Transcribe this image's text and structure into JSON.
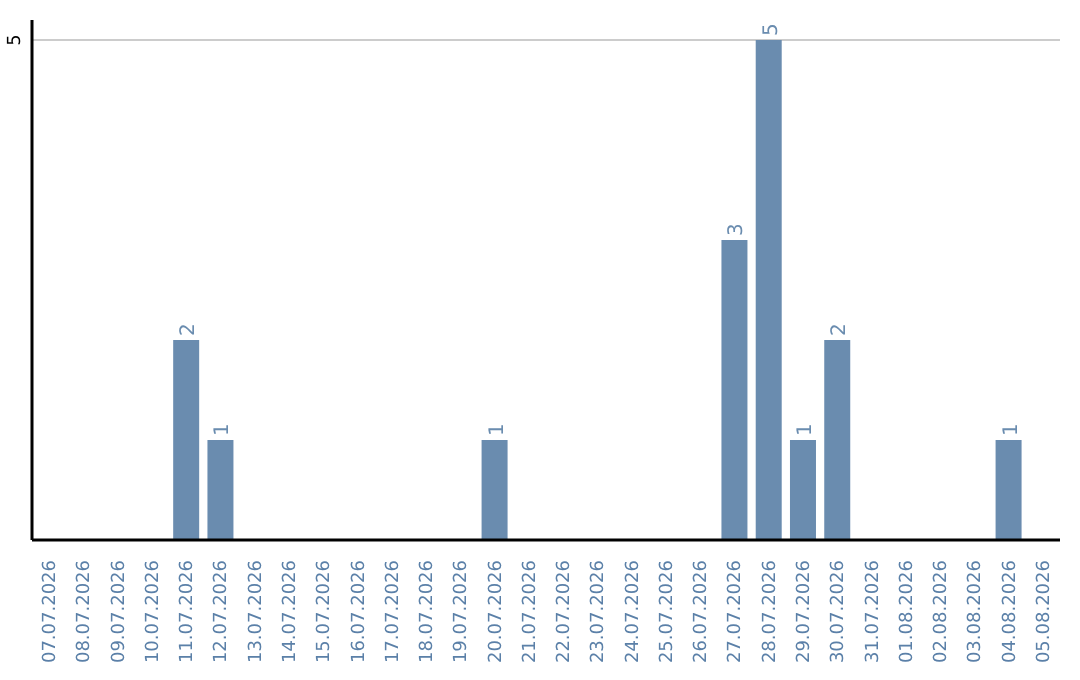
{
  "chart_data": {
    "type": "bar",
    "categories": [
      "07.07.2026",
      "08.07.2026",
      "09.07.2026",
      "10.07.2026",
      "11.07.2026",
      "12.07.2026",
      "13.07.2026",
      "14.07.2026",
      "15.07.2026",
      "16.07.2026",
      "17.07.2026",
      "18.07.2026",
      "19.07.2026",
      "20.07.2026",
      "21.07.2026",
      "22.07.2026",
      "23.07.2026",
      "24.07.2026",
      "25.07.2026",
      "26.07.2026",
      "27.07.2026",
      "28.07.2026",
      "29.07.2026",
      "30.07.2026",
      "31.07.2026",
      "01.08.2026",
      "02.08.2026",
      "03.08.2026",
      "04.08.2026",
      "05.08.2026"
    ],
    "values": [
      0,
      0,
      0,
      0,
      2,
      1,
      0,
      0,
      0,
      0,
      0,
      0,
      0,
      1,
      0,
      0,
      0,
      0,
      0,
      0,
      3,
      5,
      1,
      2,
      0,
      0,
      0,
      0,
      1,
      0
    ],
    "value_labels": [
      null,
      null,
      null,
      null,
      "2",
      "1",
      null,
      null,
      null,
      null,
      null,
      null,
      null,
      "1",
      null,
      null,
      null,
      null,
      null,
      null,
      "3",
      "5",
      "1",
      "2",
      null,
      null,
      null,
      null,
      "1",
      null
    ],
    "color": "#6a8caf",
    "ylim": [
      0,
      5.2
    ],
    "yticks": [
      5
    ],
    "grid": "y"
  }
}
